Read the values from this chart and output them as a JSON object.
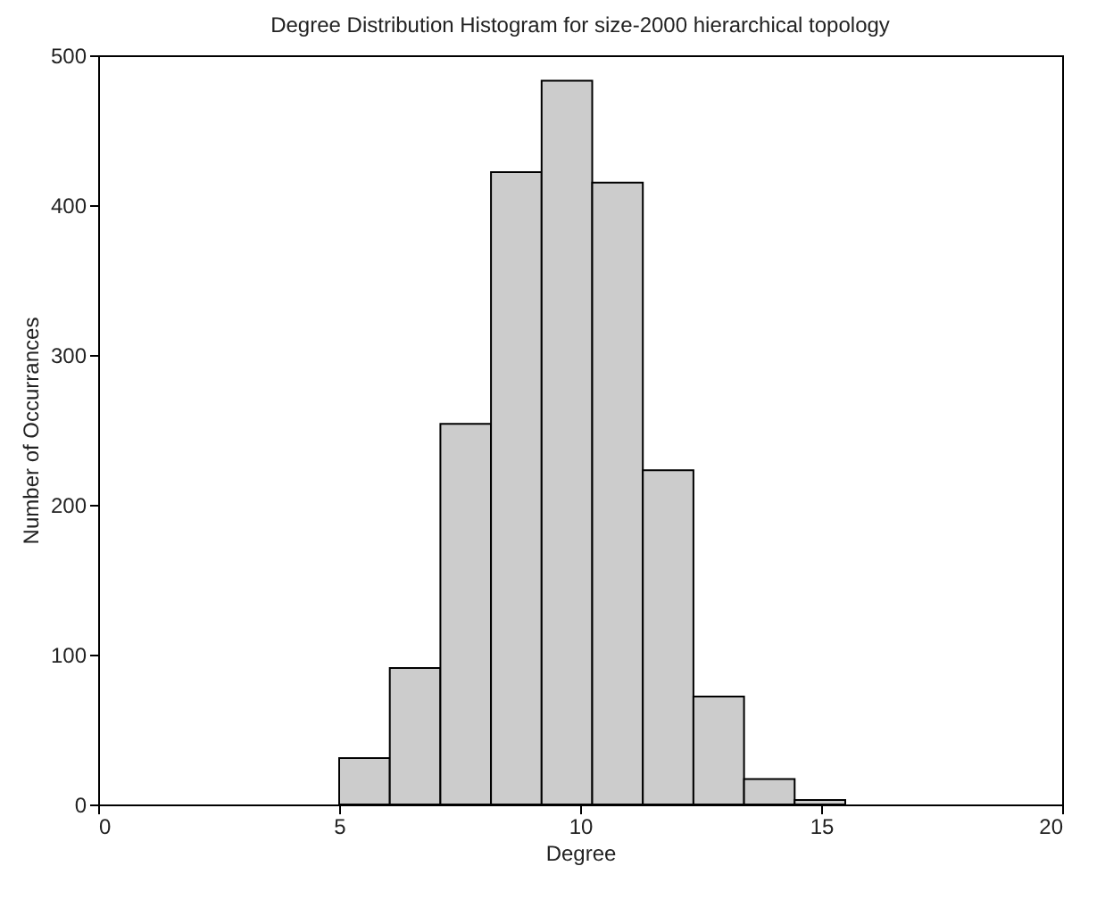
{
  "chart_data": {
    "type": "histogram",
    "title": "Degree Distribution Histogram for size-2000 hierarchical topology",
    "xlabel": "Degree",
    "ylabel": "Number of Occurrances",
    "bins": [
      5,
      6.05,
      7.1,
      8.15,
      9.2,
      10.25,
      11.3,
      12.35,
      13.4,
      14.45,
      15.5
    ],
    "values": [
      31,
      91,
      254,
      422,
      483,
      415,
      223,
      72,
      17,
      3
    ],
    "color": "#cccccc",
    "xlim": [
      0,
      20
    ],
    "xticks": [
      0,
      5,
      10,
      15,
      20
    ],
    "ylim": [
      0,
      500
    ],
    "yticks": [
      0,
      100,
      200,
      300,
      400,
      500
    ],
    "grid": false
  }
}
